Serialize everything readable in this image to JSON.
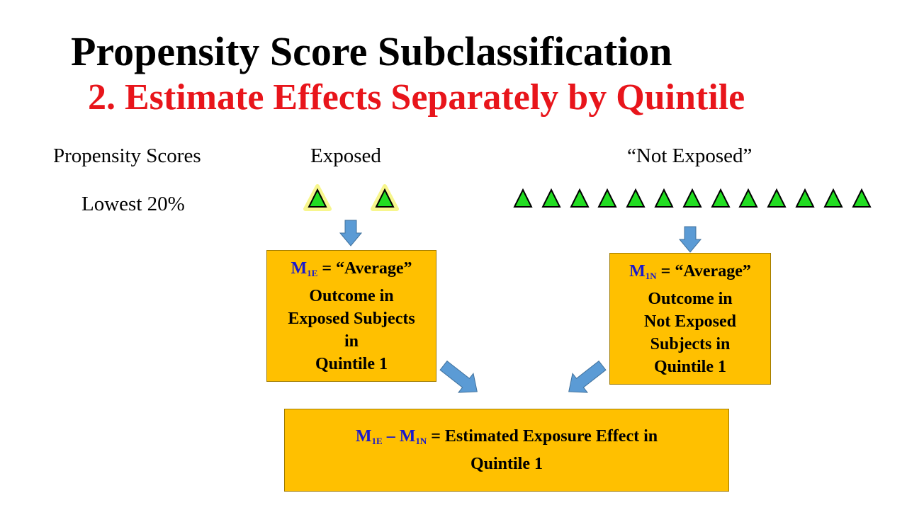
{
  "slide": {
    "title": "Propensity Score Subclassification",
    "subtitle": "2. Estimate Effects Separately by Quintile",
    "colors": {
      "subtitle": "#e8151b",
      "box_fill": "#ffc000",
      "arrow_fill": "#5b9bd5",
      "triangle_fill": "#22dd22",
      "triangle_glow": "#f6f57a",
      "m_symbol": "#1a1acc"
    }
  },
  "headers": {
    "propensity_scores": "Propensity Scores",
    "exposed": "Exposed",
    "not_exposed": "“Not Exposed”",
    "row_label": "Lowest 20%"
  },
  "markers": {
    "exposed_count": 2,
    "not_exposed_count": 13,
    "icon": "triangle-icon"
  },
  "box_exposed": {
    "symbol": "M",
    "symbol_sub": "1E",
    "first_line_rest": " = “Average”",
    "line2": "Outcome in",
    "line3": "Exposed Subjects",
    "line4": "in",
    "line5": "Quintile 1"
  },
  "box_not_exposed": {
    "symbol": "M",
    "symbol_sub": "1N",
    "first_line_rest": " = “Average”",
    "line2": "Outcome in",
    "line3": "Not Exposed",
    "line4": "Subjects in",
    "line5": "Quintile 1"
  },
  "box_effect": {
    "symbol1": "M",
    "symbol1_sub": "1E",
    "minus": " – ",
    "symbol2": "M",
    "symbol2_sub": "1N",
    "line1_rest": " = Estimated Exposure Effect in",
    "line2": "Quintile 1"
  }
}
